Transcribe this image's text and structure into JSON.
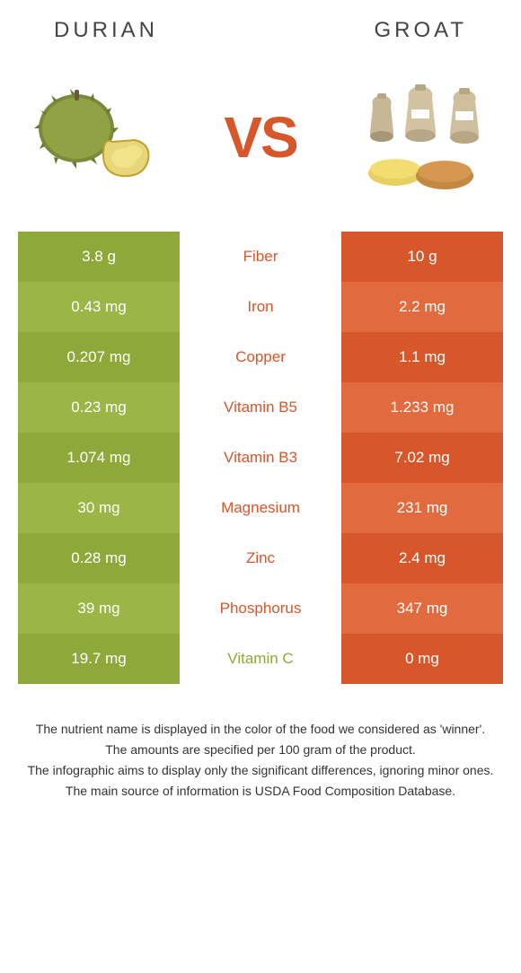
{
  "header": {
    "left_title": "DURIAN",
    "right_title": "GROAT"
  },
  "vs_label": "VS",
  "colors": {
    "left_dark": "#8ea93a",
    "left_light": "#9bb547",
    "right_dark": "#d8572a",
    "right_light": "#e16b3f",
    "mid_winner_left": "#8ea93a",
    "mid_winner_right": "#d8572a"
  },
  "rows": [
    {
      "left": "3.8 g",
      "label": "Fiber",
      "right": "10 g",
      "winner": "right"
    },
    {
      "left": "0.43 mg",
      "label": "Iron",
      "right": "2.2 mg",
      "winner": "right"
    },
    {
      "left": "0.207 mg",
      "label": "Copper",
      "right": "1.1 mg",
      "winner": "right"
    },
    {
      "left": "0.23 mg",
      "label": "Vitamin B5",
      "right": "1.233 mg",
      "winner": "right"
    },
    {
      "left": "1.074 mg",
      "label": "Vitamin B3",
      "right": "7.02 mg",
      "winner": "right"
    },
    {
      "left": "30 mg",
      "label": "Magnesium",
      "right": "231 mg",
      "winner": "right"
    },
    {
      "left": "0.28 mg",
      "label": "Zinc",
      "right": "2.4 mg",
      "winner": "right"
    },
    {
      "left": "39 mg",
      "label": "Phosphorus",
      "right": "347 mg",
      "winner": "right"
    },
    {
      "left": "19.7 mg",
      "label": "Vitamin C",
      "right": "0 mg",
      "winner": "left"
    }
  ],
  "footer": {
    "line1": "The nutrient name is displayed in the color of the food we considered as 'winner'.",
    "line2": "The amounts are specified per 100 gram of the product.",
    "line3": "The infographic aims to display only the significant differences, ignoring minor ones.",
    "line4": "The main source of information is USDA Food Composition Database."
  }
}
